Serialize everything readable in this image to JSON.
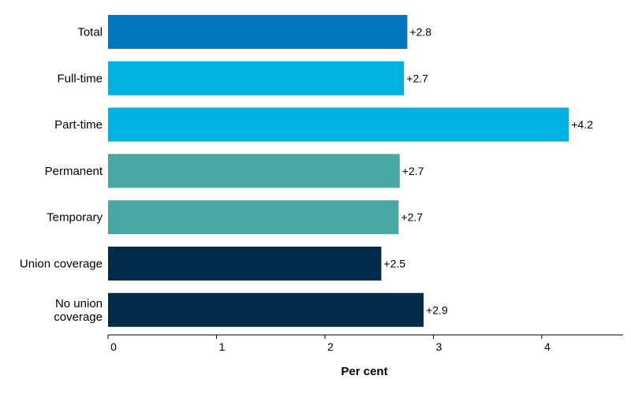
{
  "chart_data": {
    "type": "bar",
    "orientation": "horizontal",
    "categories": [
      [
        "Total"
      ],
      [
        "Full-time"
      ],
      [
        "Part-time"
      ],
      [
        "Permanent"
      ],
      [
        "Temporary"
      ],
      [
        "Union coverage"
      ],
      [
        "No union",
        "coverage"
      ]
    ],
    "values": [
      2.76,
      2.73,
      4.25,
      2.69,
      2.68,
      2.52,
      2.91
    ],
    "data_labels": [
      "+2.8",
      "+2.7",
      "+4.2",
      "+2.7",
      "+2.7",
      "+2.5",
      "+2.9"
    ],
    "bar_colors": [
      "#0077c0",
      "#00b2e3",
      "#00b2e3",
      "#48a7a3",
      "#48a7a3",
      "#002b49",
      "#002b49"
    ],
    "xlabel": "Per cent",
    "ylabel": "",
    "xlim": [
      0,
      4.75
    ],
    "xticks": [
      0,
      1,
      2,
      3,
      4
    ],
    "xtick_labels": [
      "0",
      "1",
      "2",
      "3",
      "4"
    ],
    "grid": false,
    "legend": "none"
  }
}
